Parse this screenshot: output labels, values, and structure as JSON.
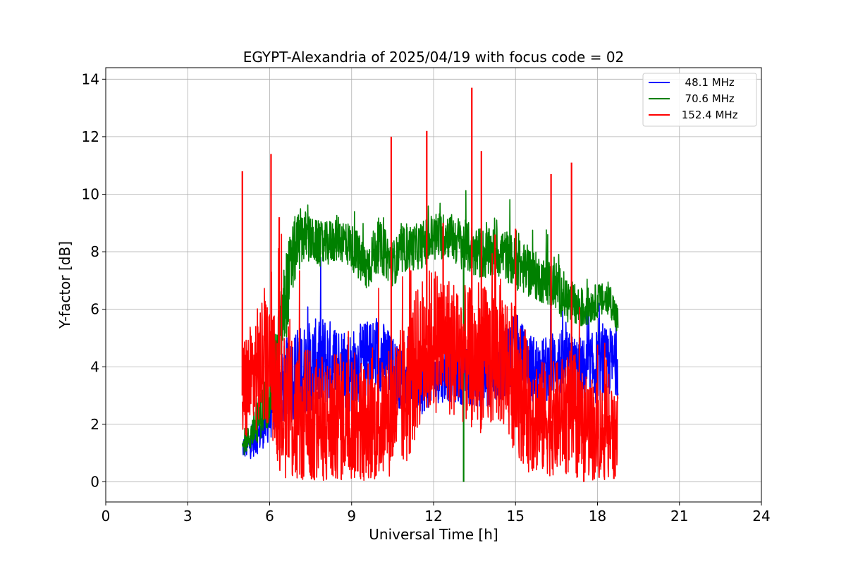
{
  "chart_data": {
    "type": "line",
    "title": "EGYPT-Alexandria of 2025/04/19 with focus code = 02",
    "xlabel": "Universal Time [h]",
    "ylabel": "Y-factor [dB]",
    "xlim": [
      0,
      24
    ],
    "ylim": [
      -0.7,
      14.4
    ],
    "xticks": [
      0,
      3,
      6,
      9,
      12,
      15,
      18,
      21,
      24
    ],
    "yticks": [
      0,
      2,
      4,
      6,
      8,
      10,
      12,
      14
    ],
    "grid": true,
    "legend_position": "top-right",
    "series": [
      {
        "name": "  48.1 MHz",
        "color": "#0000ff",
        "x": [
          5.0,
          5.3,
          5.6,
          6.0,
          6.3,
          6.6,
          7.0,
          7.5,
          8.0,
          8.5,
          9.0,
          9.5,
          10.0,
          10.5,
          11.0,
          11.5,
          12.0,
          12.5,
          13.0,
          13.5,
          14.0,
          14.5,
          15.0,
          15.5,
          16.0,
          16.5,
          17.0,
          17.5,
          18.0,
          18.5,
          18.75
        ],
        "y": [
          1.2,
          1.3,
          1.6,
          2.2,
          3.0,
          3.5,
          3.8,
          4.0,
          4.2,
          4.0,
          3.8,
          4.2,
          4.5,
          3.9,
          3.4,
          3.5,
          3.6,
          3.8,
          3.7,
          3.6,
          3.8,
          4.2,
          4.5,
          4.0,
          3.8,
          4.2,
          4.0,
          3.8,
          4.0,
          4.2,
          4.0
        ],
        "noise": [
          0.4,
          0.5,
          0.6,
          0.8,
          1.0,
          1.5,
          1.6,
          1.6,
          1.6,
          1.5,
          1.5,
          1.4,
          1.3,
          1.2,
          1.0,
          1.2,
          0.9,
          1.0,
          1.0,
          1.0,
          1.2,
          1.3,
          1.3,
          1.2,
          1.2,
          1.2,
          1.2,
          1.2,
          1.3,
          1.2,
          1.0
        ],
        "spikes": []
      },
      {
        "name": "  70.6 MHz",
        "color": "#008000",
        "x": [
          5.0,
          5.3,
          5.6,
          6.0,
          6.3,
          6.6,
          6.9,
          7.2,
          7.5,
          8.0,
          8.5,
          9.0,
          9.5,
          10.0,
          10.5,
          11.0,
          11.5,
          12.0,
          12.5,
          13.0,
          13.5,
          14.0,
          14.5,
          15.0,
          15.5,
          16.0,
          16.5,
          17.0,
          17.5,
          18.0,
          18.5,
          18.75
        ],
        "y": [
          1.2,
          1.6,
          2.2,
          3.0,
          4.5,
          6.5,
          8.0,
          8.6,
          8.4,
          8.2,
          8.5,
          8.2,
          7.4,
          8.2,
          7.6,
          8.1,
          8.2,
          8.5,
          8.6,
          8.3,
          8.0,
          7.9,
          8.0,
          7.6,
          7.3,
          7.0,
          6.8,
          6.2,
          6.0,
          6.3,
          6.3,
          5.5
        ],
        "noise": [
          0.3,
          0.5,
          0.8,
          1.0,
          1.4,
          1.6,
          1.2,
          1.0,
          0.8,
          0.8,
          0.8,
          0.8,
          0.9,
          0.9,
          0.8,
          0.8,
          0.8,
          0.9,
          0.8,
          0.9,
          0.9,
          0.9,
          0.9,
          0.9,
          0.9,
          0.8,
          0.9,
          0.8,
          0.7,
          0.6,
          0.6,
          0.6
        ],
        "spikes": [
          [
            13.1,
            0.0
          ]
        ]
      },
      {
        "name": " 152.4 MHz",
        "color": "#ff0000",
        "x": [
          5.0,
          5.3,
          5.6,
          6.0,
          6.3,
          6.6,
          7.0,
          7.5,
          8.0,
          8.5,
          9.0,
          9.5,
          10.0,
          10.5,
          11.0,
          11.5,
          12.0,
          12.5,
          13.0,
          13.5,
          14.0,
          14.5,
          15.0,
          15.5,
          16.0,
          16.5,
          17.0,
          17.5,
          18.0,
          18.5,
          18.75
        ],
        "y": [
          3.0,
          3.5,
          4.0,
          4.2,
          3.0,
          2.5,
          2.2,
          2.0,
          2.0,
          2.2,
          2.3,
          2.1,
          2.0,
          2.6,
          3.0,
          4.5,
          5.0,
          4.8,
          4.5,
          4.2,
          4.3,
          4.5,
          3.5,
          2.5,
          2.2,
          2.2,
          2.4,
          2.0,
          1.8,
          1.6,
          1.6
        ],
        "noise": [
          2.0,
          2.0,
          2.2,
          2.2,
          2.5,
          2.6,
          2.7,
          2.6,
          2.4,
          2.3,
          2.3,
          2.2,
          2.0,
          2.4,
          2.6,
          2.6,
          2.6,
          2.5,
          2.4,
          2.5,
          2.6,
          2.6,
          2.5,
          2.2,
          2.0,
          2.0,
          2.2,
          2.0,
          1.8,
          1.6,
          1.4
        ],
        "spikes": [
          [
            5.0,
            10.8
          ],
          [
            6.05,
            11.4
          ],
          [
            6.35,
            9.2
          ],
          [
            10.45,
            12.0
          ],
          [
            11.75,
            12.2
          ],
          [
            12.35,
            9.0
          ],
          [
            13.4,
            13.7
          ],
          [
            13.75,
            11.5
          ],
          [
            14.25,
            8.6
          ],
          [
            15.0,
            8.8
          ],
          [
            16.3,
            10.7
          ],
          [
            17.05,
            11.1
          ],
          [
            17.5,
            0.0
          ],
          [
            18.6,
            0.1
          ]
        ]
      }
    ]
  }
}
